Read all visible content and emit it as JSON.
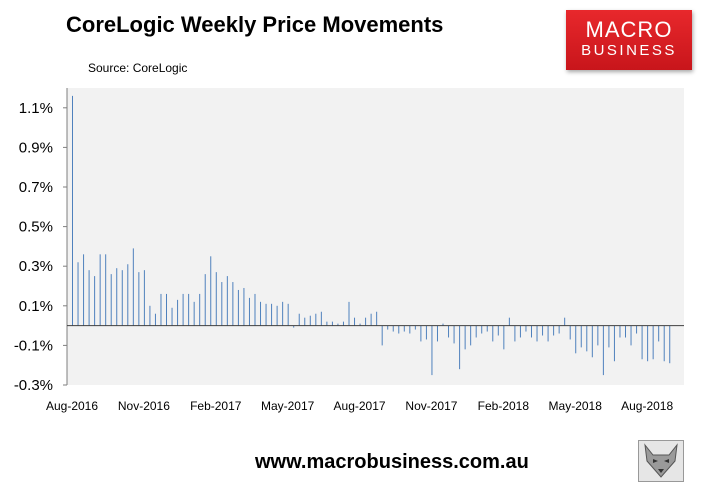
{
  "header": {
    "title": "CoreLogic Weekly Price Movements",
    "source": "Source: CoreLogic"
  },
  "logo": {
    "line1": "MACRO",
    "line2": "BUSINESS"
  },
  "footer": {
    "url": "www.macrobusiness.com.au"
  },
  "icons": {
    "logo_mark": "wolf-head-icon"
  },
  "colors": {
    "bars": "#4f81bd",
    "plot_bg": "#f2f2f2",
    "logo_red": "#d71920"
  },
  "chart_data": {
    "type": "bar",
    "title": "CoreLogic Weekly Price Movements",
    "xlabel": "",
    "ylabel": "",
    "ylim": [
      -0.3,
      1.2
    ],
    "yticks": [
      -0.3,
      -0.1,
      0.1,
      0.3,
      0.5,
      0.7,
      0.9,
      1.1
    ],
    "ytick_labels": [
      "-0.3%",
      "-0.1%",
      "0.1%",
      "0.3%",
      "0.5%",
      "0.7%",
      "0.9%",
      "1.1%"
    ],
    "xticks": [
      "Aug-2016",
      "Nov-2016",
      "Feb-2017",
      "May-2017",
      "Aug-2017",
      "Nov-2017",
      "Feb-2018",
      "May-2018",
      "Aug-2018"
    ],
    "xtick_week_index": [
      0,
      13,
      26,
      39,
      52,
      65,
      78,
      91,
      104
    ],
    "grid": false,
    "legend": "none",
    "series": [
      {
        "values": [
          1.16,
          0.32,
          0.36,
          0.28,
          0.25,
          0.36,
          0.36,
          0.26,
          0.29,
          0.28,
          0.31,
          0.39,
          0.27,
          0.28,
          0.1,
          0.06,
          0.16,
          0.16,
          0.09,
          0.13,
          0.16,
          0.16,
          0.12,
          0.16,
          0.26,
          0.35,
          0.27,
          0.22,
          0.25,
          0.22,
          0.18,
          0.19,
          0.14,
          0.16,
          0.12,
          0.11,
          0.11,
          0.1,
          0.12,
          0.11,
          -0.01,
          0.06,
          0.04,
          0.05,
          0.06,
          0.07,
          0.02,
          0.02,
          0.01,
          0.02,
          0.12,
          0.04,
          0.01,
          0.04,
          0.06,
          0.07,
          -0.1,
          -0.02,
          -0.03,
          -0.04,
          -0.03,
          -0.04,
          -0.02,
          -0.08,
          -0.07,
          -0.25,
          -0.08,
          0.01,
          -0.06,
          -0.09,
          -0.22,
          -0.12,
          -0.1,
          -0.06,
          -0.04,
          -0.03,
          -0.08,
          -0.05,
          -0.12,
          0.04,
          -0.08,
          -0.06,
          -0.03,
          -0.06,
          -0.08,
          -0.05,
          -0.08,
          -0.05,
          -0.04,
          0.04,
          -0.07,
          -0.14,
          -0.11,
          -0.13,
          -0.16,
          -0.1,
          -0.25,
          -0.11,
          -0.18,
          -0.06,
          -0.06,
          -0.1,
          -0.04,
          -0.17,
          -0.18,
          -0.17,
          -0.08,
          -0.18,
          -0.19
        ]
      }
    ]
  }
}
